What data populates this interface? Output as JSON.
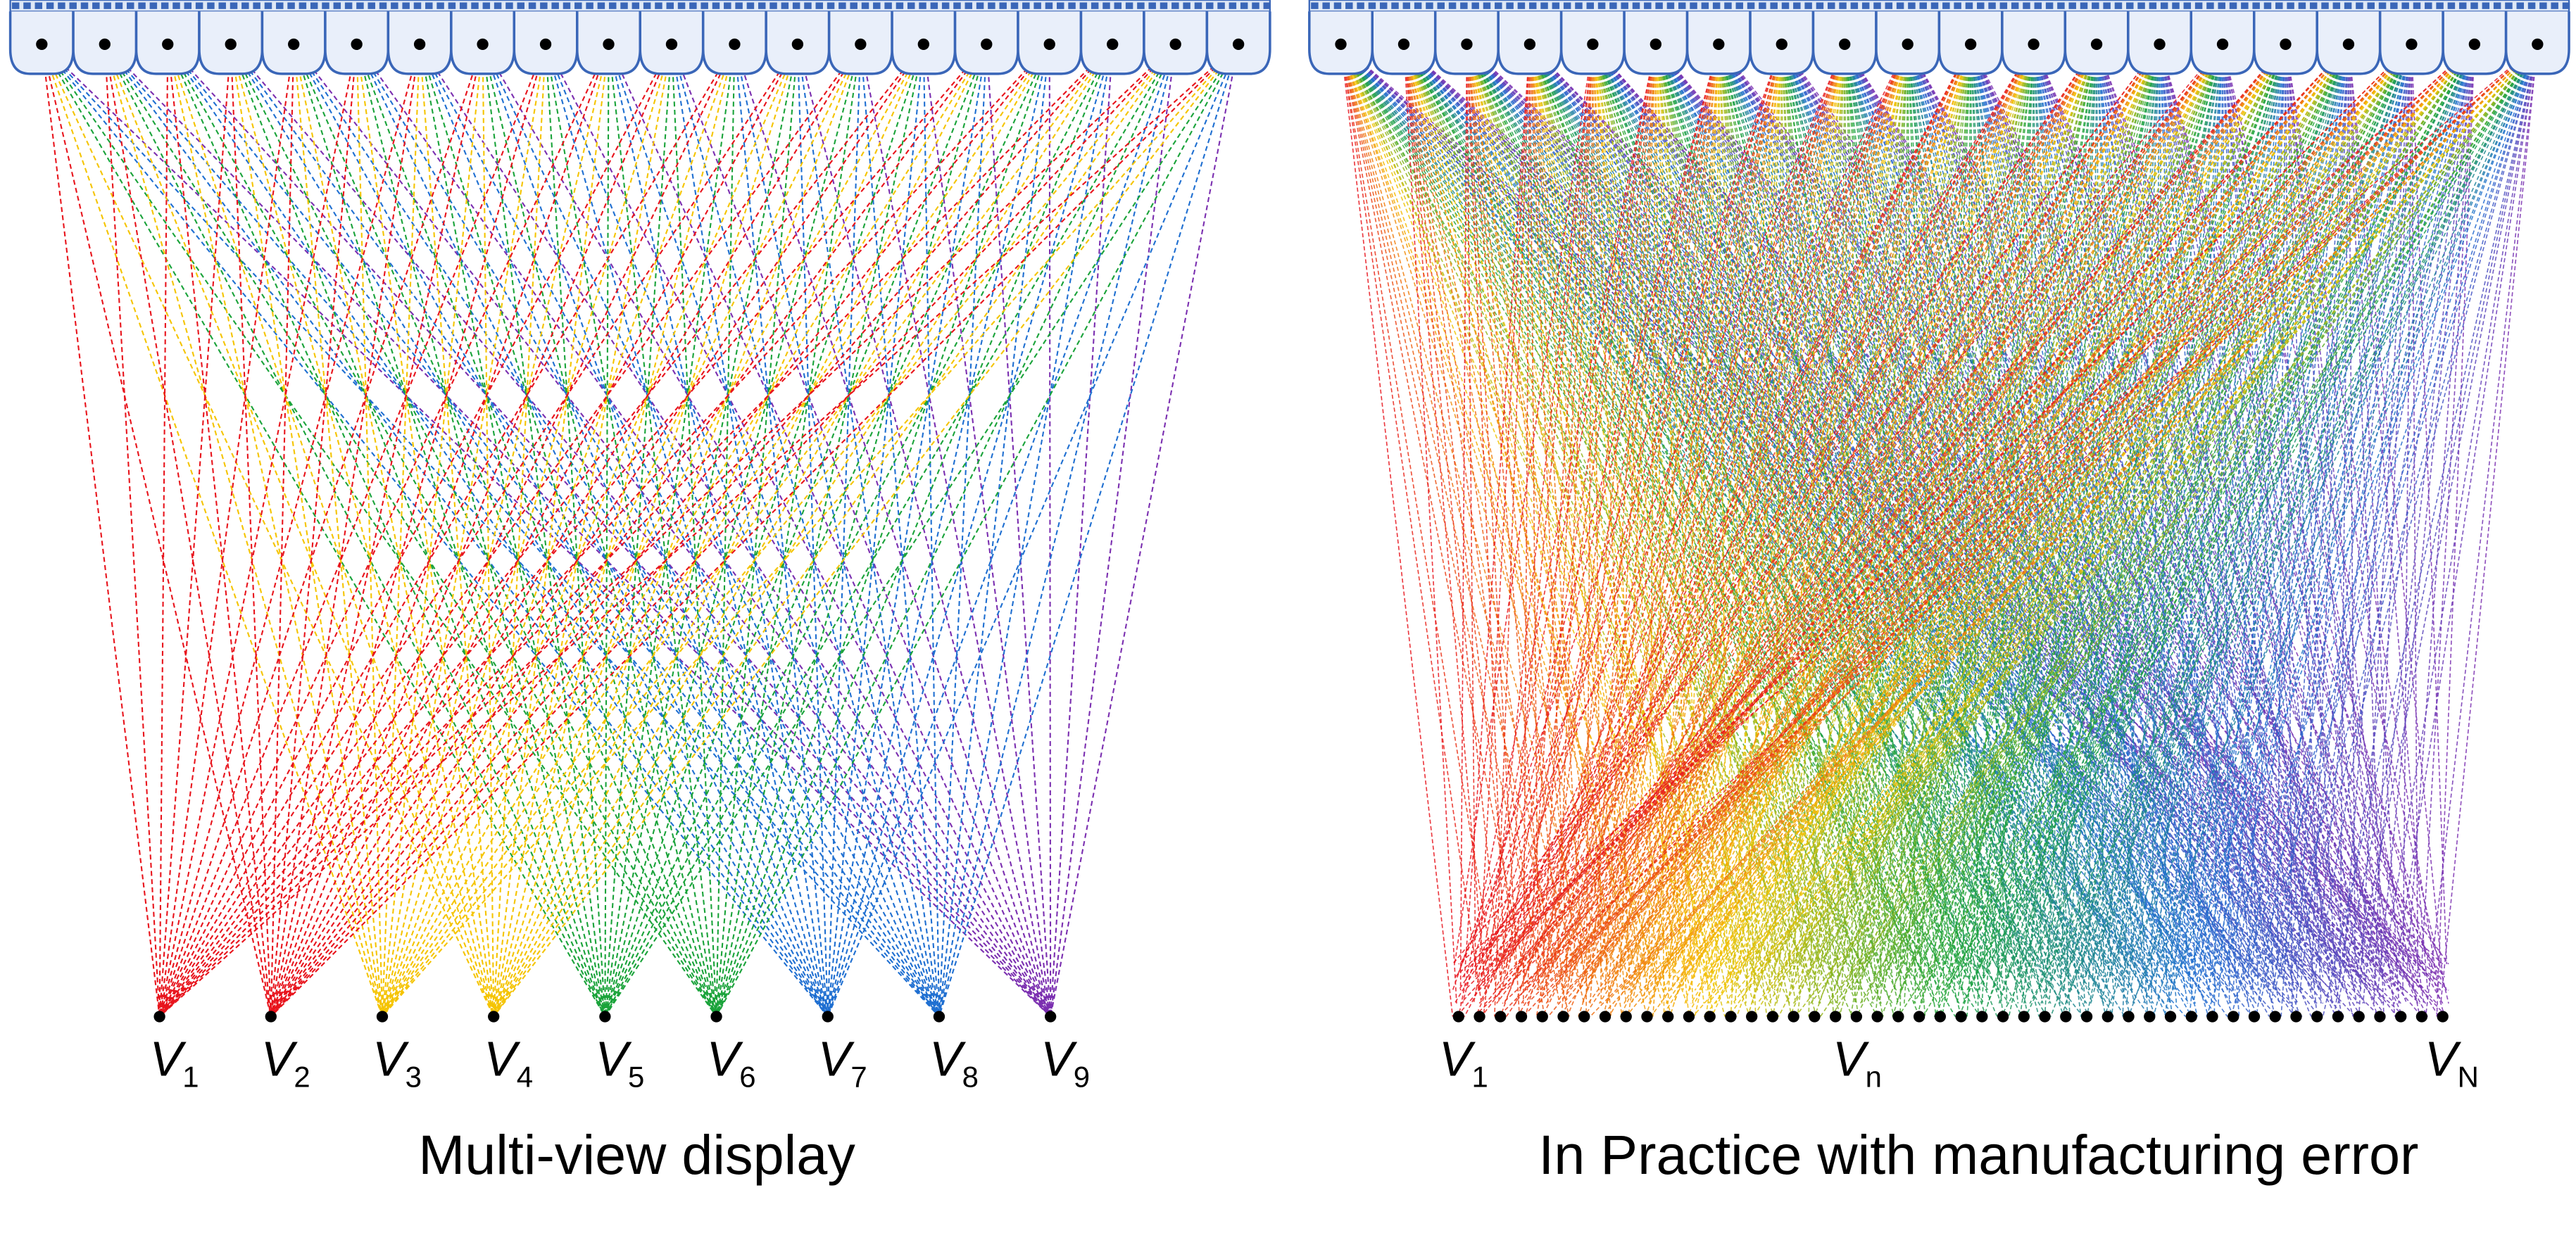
{
  "left": {
    "caption": "Multi-view display",
    "views": [
      {
        "symbol": "V",
        "index": "1"
      },
      {
        "symbol": "V",
        "index": "2"
      },
      {
        "symbol": "V",
        "index": "3"
      },
      {
        "symbol": "V",
        "index": "4"
      },
      {
        "symbol": "V",
        "index": "5"
      },
      {
        "symbol": "V",
        "index": "6"
      },
      {
        "symbol": "V",
        "index": "7"
      },
      {
        "symbol": "V",
        "index": "8"
      },
      {
        "symbol": "V",
        "index": "9"
      }
    ]
  },
  "right": {
    "caption": "In Practice with manufacturing error",
    "views": [
      {
        "symbol": "V",
        "index": "1"
      },
      {
        "symbol": "V",
        "index": "n"
      },
      {
        "symbol": "V",
        "index": "N"
      }
    ]
  }
}
